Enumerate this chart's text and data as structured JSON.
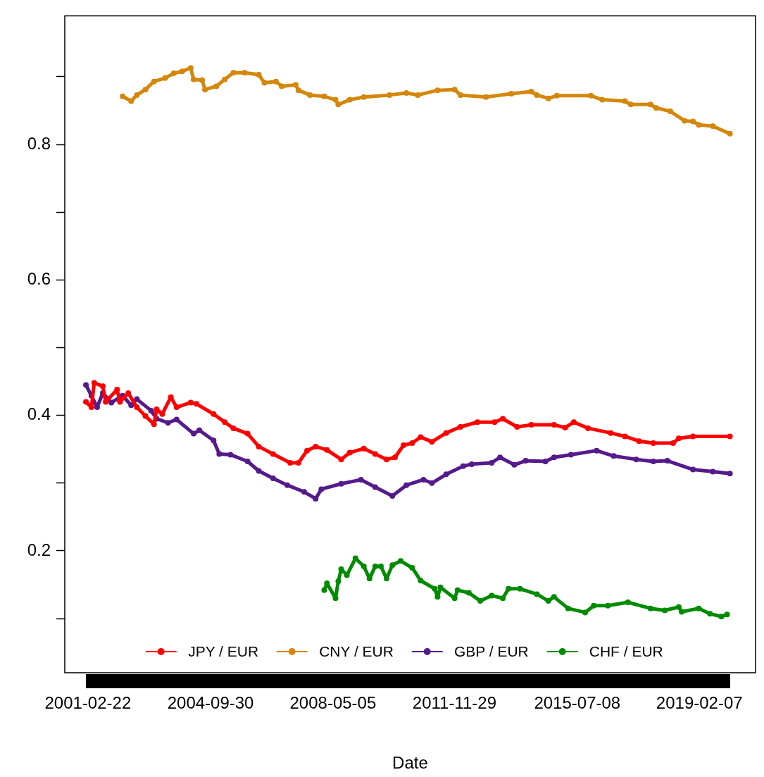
{
  "chart_data": {
    "type": "line",
    "xlabel": "Date",
    "xlim": [
      "2000-06-19",
      "2020-10-01"
    ],
    "xticks": [
      "2001-02-22",
      "2004-09-30",
      "2008-05-05",
      "2011-11-29",
      "2015-07-08",
      "2019-02-07"
    ],
    "ylim": [
      0.02,
      0.99
    ],
    "yticks": [
      {
        "value": 0.1,
        "label": null
      },
      0.2,
      {
        "value": 0.3,
        "label": null
      },
      0.4,
      {
        "value": 0.5,
        "label": null
      },
      0.6,
      {
        "value": 0.7,
        "label": null
      },
      0.8,
      {
        "value": 0.9,
        "label": null
      }
    ],
    "grid": false,
    "legend": "bottom",
    "marker": "circle",
    "line_style": "solid",
    "series": [
      {
        "name": "JPY / EUR",
        "color": "#ff0000",
        "x": [
          "2001-02",
          "2001-04",
          "2001-05",
          "2001-08",
          "2001-09",
          "2002-01",
          "2002-02",
          "2002-05",
          "2002-08",
          "2002-11",
          "2003-02",
          "2003-03",
          "2003-05",
          "2003-08",
          "2003-10",
          "2004-03",
          "2004-05",
          "2004-11",
          "2005-03",
          "2005-06",
          "2005-11",
          "2006-03",
          "2006-08",
          "2007-02",
          "2007-05",
          "2007-08",
          "2007-11",
          "2008-03",
          "2008-08",
          "2008-11",
          "2009-04",
          "2009-08",
          "2009-12",
          "2010-03",
          "2010-06",
          "2010-09",
          "2010-12",
          "2011-04",
          "2011-09",
          "2012-02",
          "2012-08",
          "2013-02",
          "2013-05",
          "2013-10",
          "2014-03",
          "2014-11",
          "2015-03",
          "2015-06",
          "2015-11",
          "2016-07",
          "2016-12",
          "2017-05",
          "2017-10",
          "2018-05",
          "2018-07",
          "2018-12",
          "2020-01"
        ],
        "values": [
          0.42,
          0.412,
          0.448,
          0.443,
          0.42,
          0.438,
          0.42,
          0.433,
          0.412,
          0.399,
          0.387,
          0.409,
          0.402,
          0.427,
          0.412,
          0.419,
          0.417,
          0.402,
          0.39,
          0.381,
          0.373,
          0.354,
          0.343,
          0.33,
          0.33,
          0.348,
          0.354,
          0.349,
          0.335,
          0.345,
          0.351,
          0.343,
          0.335,
          0.338,
          0.356,
          0.359,
          0.368,
          0.361,
          0.374,
          0.383,
          0.39,
          0.39,
          0.395,
          0.383,
          0.386,
          0.386,
          0.382,
          0.39,
          0.381,
          0.374,
          0.369,
          0.362,
          0.359,
          0.359,
          0.366,
          0.369,
          0.369
        ]
      },
      {
        "name": "CNY / EUR",
        "color": "#d4870a",
        "x": [
          "2002-03",
          "2002-06",
          "2002-08",
          "2002-11",
          "2003-02",
          "2003-06",
          "2003-09",
          "2003-12",
          "2004-03",
          "2004-04",
          "2004-07",
          "2004-08",
          "2004-12",
          "2005-03",
          "2005-06",
          "2005-10",
          "2006-03",
          "2006-05",
          "2006-09",
          "2006-11",
          "2007-04",
          "2007-05",
          "2007-09",
          "2008-02",
          "2008-06",
          "2008-07",
          "2008-11",
          "2009-04",
          "2010-01",
          "2010-07",
          "2010-11",
          "2011-06",
          "2011-12",
          "2012-02",
          "2012-11",
          "2013-08",
          "2014-03",
          "2014-05",
          "2014-09",
          "2014-12",
          "2015-12",
          "2016-04",
          "2016-12",
          "2017-02",
          "2017-09",
          "2017-11",
          "2018-04",
          "2018-09",
          "2018-12",
          "2019-02",
          "2019-07",
          "2020-01"
        ],
        "values": [
          0.871,
          0.864,
          0.873,
          0.881,
          0.893,
          0.898,
          0.905,
          0.908,
          0.913,
          0.896,
          0.895,
          0.881,
          0.886,
          0.896,
          0.906,
          0.906,
          0.903,
          0.891,
          0.893,
          0.886,
          0.888,
          0.88,
          0.873,
          0.871,
          0.866,
          0.859,
          0.866,
          0.87,
          0.873,
          0.876,
          0.873,
          0.88,
          0.881,
          0.873,
          0.87,
          0.875,
          0.878,
          0.873,
          0.868,
          0.872,
          0.872,
          0.866,
          0.864,
          0.859,
          0.859,
          0.854,
          0.849,
          0.835,
          0.834,
          0.829,
          0.827,
          0.816
        ]
      },
      {
        "name": "GBP / EUR",
        "color": "#551a8b",
        "x": [
          "2001-02",
          "2001-04",
          "2001-06",
          "2001-08",
          "2001-11",
          "2002-03",
          "2002-06",
          "2002-08",
          "2003-01",
          "2003-03",
          "2003-07",
          "2003-10",
          "2004-04",
          "2004-06",
          "2004-11",
          "2005-01",
          "2005-05",
          "2005-11",
          "2006-03",
          "2006-08",
          "2007-01",
          "2007-07",
          "2007-11",
          "2008-01",
          "2008-08",
          "2009-03",
          "2009-08",
          "2010-02",
          "2010-07",
          "2011-01",
          "2011-04",
          "2011-09",
          "2012-03",
          "2012-06",
          "2013-01",
          "2013-04",
          "2013-09",
          "2014-01",
          "2014-08",
          "2014-11",
          "2015-05",
          "2016-02",
          "2016-08",
          "2017-04",
          "2017-10",
          "2018-03",
          "2018-12",
          "2019-07",
          "2020-01"
        ],
        "values": [
          0.445,
          0.429,
          0.412,
          0.433,
          0.419,
          0.429,
          0.415,
          0.424,
          0.407,
          0.395,
          0.389,
          0.394,
          0.373,
          0.378,
          0.363,
          0.343,
          0.342,
          0.332,
          0.318,
          0.307,
          0.297,
          0.287,
          0.277,
          0.291,
          0.299,
          0.305,
          0.294,
          0.281,
          0.297,
          0.305,
          0.3,
          0.313,
          0.325,
          0.328,
          0.33,
          0.338,
          0.327,
          0.333,
          0.332,
          0.338,
          0.342,
          0.348,
          0.34,
          0.335,
          0.332,
          0.333,
          0.32,
          0.317,
          0.314
        ]
      },
      {
        "name": "CHF / EUR",
        "color": "#008b00",
        "x": [
          "2008-02",
          "2008-03",
          "2008-06",
          "2008-07",
          "2008-08",
          "2008-10",
          "2009-01",
          "2009-04",
          "2009-06",
          "2009-08",
          "2009-10",
          "2009-12",
          "2010-02",
          "2010-05",
          "2010-09",
          "2010-12",
          "2011-05",
          "2011-06",
          "2011-07",
          "2011-12",
          "2012-01",
          "2012-05",
          "2012-09",
          "2013-01",
          "2013-05",
          "2013-07",
          "2013-11",
          "2014-05",
          "2014-09",
          "2014-11",
          "2015-04",
          "2015-10",
          "2016-01",
          "2016-06",
          "2017-01",
          "2017-09",
          "2018-02",
          "2018-07",
          "2018-08",
          "2019-02",
          "2019-06",
          "2019-10",
          "2019-12"
        ],
        "values": [
          0.142,
          0.152,
          0.13,
          0.155,
          0.173,
          0.164,
          0.189,
          0.177,
          0.159,
          0.177,
          0.177,
          0.159,
          0.179,
          0.185,
          0.175,
          0.156,
          0.144,
          0.132,
          0.146,
          0.13,
          0.142,
          0.138,
          0.126,
          0.134,
          0.13,
          0.144,
          0.144,
          0.136,
          0.126,
          0.132,
          0.115,
          0.109,
          0.119,
          0.119,
          0.124,
          0.115,
          0.112,
          0.117,
          0.11,
          0.115,
          0.107,
          0.103,
          0.106
        ]
      }
    ]
  }
}
